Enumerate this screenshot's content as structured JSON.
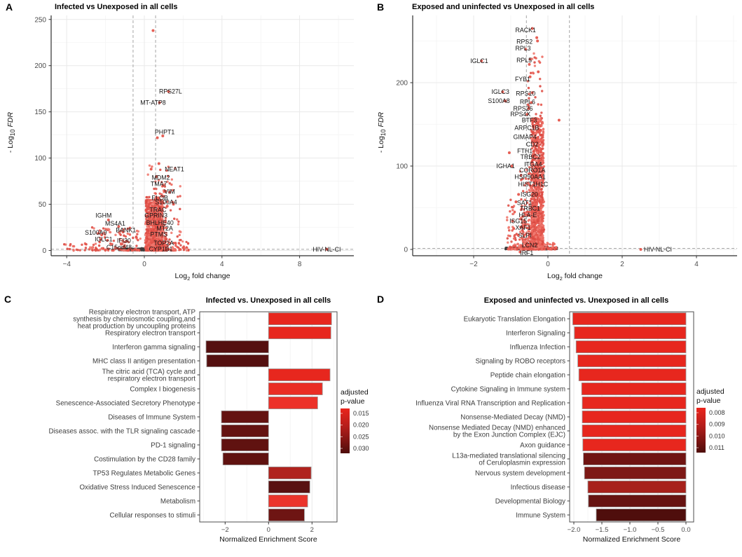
{
  "figure": {
    "panels": {
      "A": {
        "label": "A"
      },
      "B": {
        "label": "B"
      },
      "C": {
        "label": "C"
      },
      "D": {
        "label": "D"
      }
    }
  },
  "chart_data": [
    {
      "panel": "A",
      "type": "scatter",
      "subtype": "volcano",
      "title": "Infected vs Unexposed in all cells",
      "xlabel": {
        "pre": "Log",
        "sub": "2",
        "post": " fold change"
      },
      "ylabel": {
        "pre": "- Log",
        "sub": "10",
        "post_italic": " FDR"
      },
      "xlim": [
        -4.8,
        10.8
      ],
      "ylim": [
        -6,
        254
      ],
      "xticks": [
        {
          "v": -4,
          "t": "−4"
        },
        {
          "v": 0,
          "t": "0"
        },
        {
          "v": 4,
          "t": "4"
        },
        {
          "v": 8,
          "t": "8"
        }
      ],
      "yticks": [
        {
          "v": 0,
          "t": "0"
        },
        {
          "v": 50,
          "t": "50"
        },
        {
          "v": 100,
          "t": "100"
        },
        {
          "v": 150,
          "t": "150"
        },
        {
          "v": 200,
          "t": "200"
        },
        {
          "v": 250,
          "t": "250"
        }
      ],
      "threshold_vlines": [
        -0.58,
        0.58
      ],
      "threshold_hline": 1.3,
      "point_palette": [
        "#EC6A60",
        "#E5564C",
        "#E0544B",
        "#EF7A70",
        "#DB4A43"
      ],
      "nonsig_color": "#3E3E3E",
      "grid": true,
      "labeled_genes": [
        {
          "gene": "RPS27L",
          "x": 1.35,
          "y": 172
        },
        {
          "gene": "MT-ATP8",
          "x": 0.45,
          "y": 160
        },
        {
          "gene": "PHPT1",
          "x": 1.05,
          "y": 128
        },
        {
          "gene": "NEAT1",
          "x": 1.55,
          "y": 88
        },
        {
          "gene": "MDM2",
          "x": 0.85,
          "y": 79
        },
        {
          "gene": "TMA7",
          "x": 0.75,
          "y": 72
        },
        {
          "gene": "VIM",
          "x": 1.3,
          "y": 63.5
        },
        {
          "gene": "ELOB",
          "x": 0.8,
          "y": 57
        },
        {
          "gene": "S100A4",
          "x": 1.12,
          "y": 52.5
        },
        {
          "gene": "TRAC",
          "x": 0.7,
          "y": 44
        },
        {
          "gene": "GPRIN3",
          "x": 0.6,
          "y": 38
        },
        {
          "gene": "BHLHE40",
          "x": 0.8,
          "y": 30
        },
        {
          "gene": "MT2A",
          "x": 1.05,
          "y": 24
        },
        {
          "gene": "PTMS",
          "x": 0.75,
          "y": 17.5
        },
        {
          "gene": "TOP2A",
          "x": 1.0,
          "y": 8
        },
        {
          "gene": "CYP1B1",
          "x": 0.85,
          "y": 1.5
        },
        {
          "gene": "IGHM",
          "x": -2.1,
          "y": 38
        },
        {
          "gene": "MS4A1",
          "x": -1.5,
          "y": 29
        },
        {
          "gene": "S100A9",
          "x": -2.5,
          "y": 19.5
        },
        {
          "gene": "BANK1",
          "x": -0.95,
          "y": 22
        },
        {
          "gene": "IGLC1",
          "x": -2.1,
          "y": 12
        },
        {
          "gene": "IFI30",
          "x": -1.05,
          "y": 10.5
        },
        {
          "gene": "C15orf48",
          "x": -1.3,
          "y": 3.5
        },
        {
          "gene": "HIV-NL-CI",
          "x": 9.4,
          "y": 1.3
        }
      ],
      "outlier_points": [
        [
          0.45,
          238
        ],
        [
          1.25,
          172
        ],
        [
          0.78,
          160
        ],
        [
          0.95,
          124
        ],
        [
          0.67,
          122
        ],
        [
          0.75,
          94
        ],
        [
          0.35,
          88
        ],
        [
          0.62,
          80
        ],
        [
          0.95,
          70
        ],
        [
          1.07,
          64
        ],
        [
          1.3,
          63
        ],
        [
          0.72,
          57
        ],
        [
          0.92,
          52
        ],
        [
          1.5,
          50
        ],
        [
          1.18,
          48
        ],
        [
          9.4,
          1.3
        ],
        [
          -1.85,
          33
        ],
        [
          -1.32,
          26
        ],
        [
          -2.2,
          17
        ],
        [
          -1.1,
          20
        ],
        [
          -1.9,
          11
        ],
        [
          -0.92,
          10
        ],
        [
          -1.05,
          4
        ],
        [
          1.6,
          8
        ],
        [
          2.0,
          3
        ]
      ],
      "background_clouds": [
        {
          "x": [
            0.08,
            0.95
          ],
          "ymin": 0,
          "ymax": 55,
          "n": 850,
          "pow": 1.5,
          "r": 1.7
        },
        {
          "x": [
            0.05,
            1.15
          ],
          "ymin": 0,
          "ymax": 65,
          "n": 250,
          "pow": 2.2,
          "r": 1.7
        },
        {
          "x": [
            0.1,
            1.9
          ],
          "ymin": 0,
          "ymax": 92,
          "n": 130,
          "pow": 2.6,
          "r": 1.7
        },
        {
          "x": [
            -2.7,
            -0.2
          ],
          "ymin": 0,
          "ymax": 26,
          "n": 120,
          "pow": 2.6,
          "r": 1.7
        },
        {
          "x": [
            -4.3,
            -2.5
          ],
          "ymin": 0,
          "ymax": 8,
          "n": 22,
          "pow": 2.0,
          "r": 1.7
        },
        {
          "x": [
            1.0,
            2.3
          ],
          "ymin": 0,
          "ymax": 12,
          "n": 35,
          "pow": 2.0,
          "r": 1.6
        }
      ],
      "nonsig_cloud": [
        {
          "x": [
            -1.35,
            0.55
          ],
          "ymin": 0,
          "ymax": 2.2,
          "n": 300,
          "pow": 1,
          "r": 1.4
        },
        {
          "x": [
            -0.2,
            0.45
          ],
          "ymin": 0,
          "ymax": 2.6,
          "n": 140,
          "pow": 1,
          "r": 1.5
        }
      ],
      "seed": 101
    },
    {
      "panel": "B",
      "type": "scatter",
      "subtype": "volcano",
      "title": "Exposed and uninfected vs Unexposed in all cells",
      "xlabel": {
        "pre": "Log",
        "sub": "2",
        "post": " fold change"
      },
      "ylabel": {
        "pre": "- Log",
        "sub": "10",
        "post_italic": " FDR"
      },
      "xlim": [
        -3.64,
        5.09
      ],
      "ylim": [
        -7.6,
        281
      ],
      "xticks": [
        {
          "v": -2,
          "t": "−2"
        },
        {
          "v": 0,
          "t": "0"
        },
        {
          "v": 2,
          "t": "2"
        },
        {
          "v": 4,
          "t": "4"
        }
      ],
      "yticks": [
        {
          "v": 0,
          "t": "0"
        },
        {
          "v": 100,
          "t": "100"
        },
        {
          "v": 200,
          "t": "200"
        }
      ],
      "threshold_vlines": [
        -0.58,
        0.58
      ],
      "threshold_hline": 1.3,
      "point_palette": [
        "#EC6A60",
        "#E5564C",
        "#E0544B",
        "#EF7A70",
        "#DB4A43"
      ],
      "nonsig_color": "#3E3E3E",
      "grid": true,
      "labeled_genes": [
        {
          "gene": "RACK1",
          "x": -0.6,
          "y": 263
        },
        {
          "gene": "RPS2",
          "x": -0.63,
          "y": 249
        },
        {
          "gene": "RPL3",
          "x": -0.67,
          "y": 241
        },
        {
          "gene": "RPL5",
          "x": -0.64,
          "y": 227
        },
        {
          "gene": "IGLC1",
          "x": -1.85,
          "y": 226
        },
        {
          "gene": "FYB1",
          "x": -0.68,
          "y": 204
        },
        {
          "gene": "IGLC3",
          "x": -1.28,
          "y": 189
        },
        {
          "gene": "RPS10",
          "x": -0.6,
          "y": 187
        },
        {
          "gene": "S100A8",
          "x": -1.32,
          "y": 178
        },
        {
          "gene": "RPL6",
          "x": -0.55,
          "y": 177
        },
        {
          "gene": "RPS26",
          "x": -0.67,
          "y": 169
        },
        {
          "gene": "RPS4X",
          "x": -0.74,
          "y": 162
        },
        {
          "gene": "BTF3",
          "x": -0.5,
          "y": 155
        },
        {
          "gene": "ARPC1B",
          "x": -0.57,
          "y": 146
        },
        {
          "gene": "GIMAP4",
          "x": -0.62,
          "y": 135
        },
        {
          "gene": "CD2",
          "x": -0.42,
          "y": 126
        },
        {
          "gene": "FTH1",
          "x": -0.62,
          "y": 118
        },
        {
          "gene": "TRBC2",
          "x": -0.47,
          "y": 111
        },
        {
          "gene": "IGHA1",
          "x": -1.14,
          "y": 100
        },
        {
          "gene": "ITGA4",
          "x": -0.4,
          "y": 102
        },
        {
          "gene": "CORO1A",
          "x": -0.42,
          "y": 95
        },
        {
          "gene": "HSP90AA1",
          "x": -0.48,
          "y": 87
        },
        {
          "gene": "HIST1H1C",
          "x": -0.4,
          "y": 78
        },
        {
          "gene": "ISG20",
          "x": -0.5,
          "y": 66
        },
        {
          "gene": "SAT1",
          "x": -0.63,
          "y": 56
        },
        {
          "gene": "TRBC1",
          "x": -0.48,
          "y": 49
        },
        {
          "gene": "HLA-E",
          "x": -0.54,
          "y": 41
        },
        {
          "gene": "ISG15",
          "x": -0.8,
          "y": 34
        },
        {
          "gene": "XAF1",
          "x": -0.67,
          "y": 26
        },
        {
          "gene": "SLPI",
          "x": -0.62,
          "y": 17
        },
        {
          "gene": "LCN2",
          "x": -0.49,
          "y": 5
        },
        {
          "gene": "IRF1",
          "x": -0.57,
          "y": -4
        },
        {
          "gene": "HIV-NL-CI",
          "x": 2.96,
          "y": 0
        }
      ],
      "outlier_points": [
        [
          -0.42,
          265
        ],
        [
          -0.3,
          254
        ],
        [
          -0.48,
          228
        ],
        [
          -1.79,
          226
        ],
        [
          -0.28,
          250
        ],
        [
          -0.26,
          213
        ],
        [
          -0.48,
          207
        ],
        [
          -1.22,
          189
        ],
        [
          -0.42,
          188
        ],
        [
          -1.15,
          178
        ],
        [
          -0.45,
          176
        ],
        [
          -0.52,
          169
        ],
        [
          -0.56,
          162
        ],
        [
          -0.38,
          156
        ],
        [
          0.3,
          155
        ],
        [
          -1.04,
          116
        ],
        [
          -0.97,
          100
        ],
        [
          -0.79,
          66
        ],
        [
          -0.86,
          57
        ],
        [
          -0.95,
          34
        ],
        [
          -0.92,
          25
        ],
        [
          -0.8,
          17
        ],
        [
          -0.75,
          -3
        ],
        [
          2.5,
          0
        ],
        [
          -0.6,
          240
        ],
        [
          -0.5,
          222
        ]
      ],
      "background_clouds": [
        {
          "x": [
            -0.45,
            -0.12
          ],
          "ymin": 0,
          "ymax": 158,
          "n": 950,
          "pow": 1.35,
          "r": 1.7
        },
        {
          "x": [
            -0.75,
            -0.1
          ],
          "ymin": 0,
          "ymax": 100,
          "n": 260,
          "pow": 2.4,
          "r": 1.7
        },
        {
          "x": [
            -0.55,
            -0.15
          ],
          "ymin": 150,
          "ymax": 235,
          "n": 30,
          "pow": 1,
          "r": 1.7
        },
        {
          "x": [
            -1.1,
            -0.4
          ],
          "ymin": 0,
          "ymax": 60,
          "n": 130,
          "pow": 2.6,
          "r": 1.7
        },
        {
          "x": [
            -0.12,
            0.25
          ],
          "ymin": 0,
          "ymax": 8,
          "n": 40,
          "pow": 2.0,
          "r": 1.6
        }
      ],
      "nonsig_cloud": [
        {
          "x": [
            -1.15,
            0.25
          ],
          "ymin": 0,
          "ymax": 2.2,
          "n": 320,
          "pow": 1,
          "r": 1.4
        },
        {
          "x": [
            -0.4,
            0.0
          ],
          "ymin": 0,
          "ymax": 3,
          "n": 150,
          "pow": 1,
          "r": 1.6
        }
      ],
      "seed": 202
    },
    {
      "panel": "C",
      "type": "bar",
      "orientation": "horizontal",
      "title": "Infected vs. Unexposed in all cells",
      "xlabel": "Normalized Enrichment Score",
      "xlim": [
        -3.17,
        3.15
      ],
      "xticks": [
        {
          "v": -2,
          "t": "−2"
        },
        {
          "v": 0,
          "t": "0"
        },
        {
          "v": 2,
          "t": "2"
        }
      ],
      "categories": [
        "Respiratory electron transport, ATP\nsynthesis by chemiosmotic coupling,and\nheat production by uncoupling proteins",
        "Respiratory electron transport",
        "Interferon gamma signaling",
        "MHC class II antigen presentation",
        "The citric acid (TCA) cycle and\nrespiratory electron transport",
        "Complex I biogenesis",
        "Senescence-Associated Secretory Phenotype",
        "Diseases of Immune System",
        "Diseases assoc. with the TLR signaling cascade",
        "PD-1 signaling",
        "Costimulation by the CD28 family",
        "TP53 Regulates Metabolic Genes",
        "Oxidative Stress Induced Senescence",
        "Metabolism",
        "Cellular responses to stimuli"
      ],
      "values": [
        2.9,
        2.87,
        -2.88,
        -2.85,
        2.83,
        2.48,
        2.26,
        -2.17,
        -2.17,
        -2.17,
        -2.1,
        1.96,
        1.9,
        1.8,
        1.65
      ],
      "adjusted_p": [
        0.015,
        0.015,
        0.03,
        0.03,
        0.015,
        0.016,
        0.016,
        0.029,
        0.029,
        0.029,
        0.029,
        0.023,
        0.03,
        0.017,
        0.028
      ],
      "bar_colors": [
        "#E7271E",
        "#E7271E",
        "#551010",
        "#551010",
        "#E7271E",
        "#EA2D24",
        "#EC3129",
        "#641311",
        "#641311",
        "#601210",
        "#601210",
        "#B0231E",
        "#591111",
        "#EB342B",
        "#6E1513"
      ],
      "bar_outline": "#9A9A9A",
      "legend": {
        "title_line1": "adjusted",
        "title_line2": "p-value",
        "ticks": [
          "0.015",
          "0.020",
          "0.025",
          "0.030"
        ],
        "gradient_top": "#EA241C",
        "gradient_bottom": "#4E0D0B",
        "position": "right"
      }
    },
    {
      "panel": "D",
      "type": "bar",
      "orientation": "horizontal",
      "title": "Exposed and uninfected vs. Unexposed in all cells",
      "xlabel": "Normalized Enrichment Score",
      "xlim": [
        -2.08,
        0.14
      ],
      "xticks": [
        {
          "v": -2.0,
          "t": "−2.0"
        },
        {
          "v": -1.5,
          "t": "−1.5"
        },
        {
          "v": -1.0,
          "t": "−1.0"
        },
        {
          "v": -0.5,
          "t": "−0.5"
        },
        {
          "v": 0.0,
          "t": "0.0"
        }
      ],
      "categories": [
        "Eukaryotic Translation Elongation",
        "Interferon Signaling",
        "Influenza Infection",
        "Signaling by ROBO receptors",
        "Peptide chain elongation",
        "Cytokine Signaling in Immune system",
        "Influenza Viral RNA Transcription and Replication",
        "Nonsense-Mediated Decay (NMD)",
        "Nonsense Mediated Decay (NMD) enhanced\nby the Exon Junction Complex (EJC)",
        "Axon guidance",
        "L13a-mediated translational silencing\nof Ceruloplasmin expression",
        "Nervous system development",
        "Infectious disease",
        "Developmental Biology",
        "Immune System"
      ],
      "values": [
        -2.02,
        -1.99,
        -1.96,
        -1.93,
        -1.91,
        -1.86,
        -1.85,
        -1.85,
        -1.85,
        -1.84,
        -1.83,
        -1.81,
        -1.75,
        -1.74,
        -1.6
      ],
      "adjusted_p": [
        0.008,
        0.008,
        0.008,
        0.008,
        0.008,
        0.008,
        0.008,
        0.008,
        0.008,
        0.008,
        0.011,
        0.011,
        0.01,
        0.011,
        0.011
      ],
      "bar_colors": [
        "#E7271E",
        "#E7271E",
        "#E7271E",
        "#E7271E",
        "#E7271E",
        "#E7271E",
        "#E7271E",
        "#E7271E",
        "#E7271E",
        "#E7271E",
        "#701412",
        "#7E1916",
        "#A7211B",
        "#671311",
        "#4F0E0C"
      ],
      "bar_outline": "#9A9A9A",
      "legend": {
        "title_line1": "adjusted",
        "title_line2": "p-value",
        "ticks": [
          "0.008",
          "0.009",
          "0.010",
          "0.011"
        ],
        "gradient_top": "#EA241C",
        "gradient_bottom": "#4E0D0B",
        "position": "right"
      }
    }
  ]
}
